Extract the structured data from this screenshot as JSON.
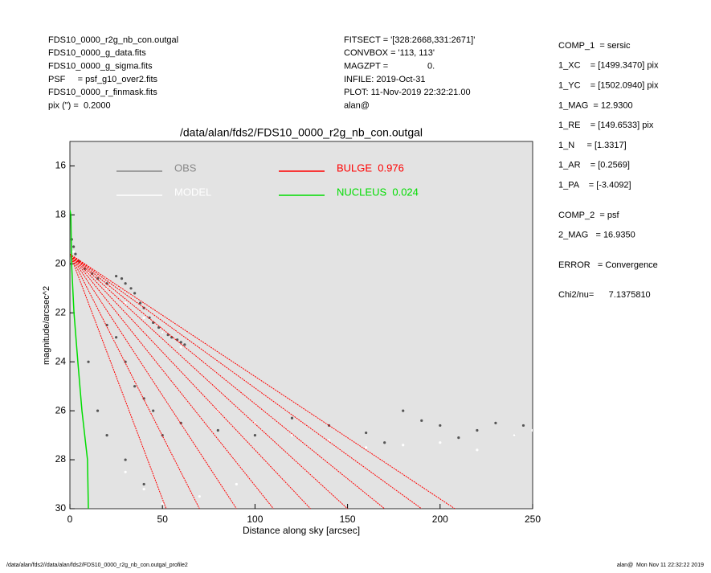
{
  "header": {
    "left": [
      "FDS10_0000_r2g_nb_con.outgal",
      "FDS10_0000_g_data.fits",
      "FDS10_0000_g_sigma.fits",
      "PSF     = psf_g10_over2.fits",
      "FDS10_0000_r_finmask.fits",
      "pix (\") =  0.2000"
    ],
    "middle": [
      "FITSECT = '[328:2668,331:2671]'",
      "CONVBOX = '113, 113'",
      "MAGZPT =                0.",
      "INFILE: 2019-Oct-31",
      "PLOT: 11-Nov-2019 22:32:21.00",
      "alan@"
    ]
  },
  "right_panel": [
    [
      "COMP_1  = sersic",
      "1_XC    = [1499.3470] pix",
      "1_YC    = [1502.0940] pix",
      "1_MAG  = 12.9300",
      "1_RE    = [149.6533] pix",
      "1_N     = [1.3317]",
      "1_AR    = [0.2569]",
      "1_PA    = [-3.4092]"
    ],
    [
      "COMP_2  = psf",
      "2_MAG   = 16.9350"
    ],
    [
      "ERROR   = Convergence"
    ],
    [
      "Chi2/nu=      7.1375810"
    ]
  ],
  "footer": {
    "left": "/data/alan/fds2//data/alan/fds2/FDS10_0000_r2g_nb_con.outgal_profile2",
    "right": "alan@  Mon Nov 11 22:32:22 2019"
  },
  "chart_data": {
    "type": "line",
    "title": "/data/alan/fds2/FDS10_0000_r2g_nb_con.outgal",
    "xlabel": "Distance along sky [arcsec]",
    "ylabel": "magnitude/arcsec^2",
    "xlim": [
      0,
      250
    ],
    "ylim": [
      15,
      30
    ],
    "y_inverted": true,
    "xticks": [
      0,
      50,
      100,
      150,
      200,
      250
    ],
    "yticks": [
      16,
      18,
      20,
      22,
      24,
      26,
      28,
      30
    ],
    "background": "#e3e3e3",
    "series": [
      {
        "name": "OBS",
        "color": "#555555",
        "legend_color": "#888888",
        "style": "points",
        "x": [
          1,
          2,
          3,
          5,
          8,
          12,
          15,
          20,
          25,
          28,
          30,
          33,
          35,
          38,
          40,
          43,
          45,
          48,
          50,
          53,
          55,
          58,
          60,
          62,
          20,
          25,
          30,
          35,
          40,
          45,
          50,
          60,
          80,
          100,
          120,
          140,
          160,
          170,
          180,
          190,
          200,
          210,
          220,
          230,
          240,
          245,
          10,
          15,
          20,
          30,
          40
        ],
        "values": [
          19,
          19.3,
          19.6,
          19.9,
          20.2,
          20.4,
          20.6,
          20.8,
          20.5,
          20.6,
          20.8,
          21.0,
          21.2,
          21.6,
          21.8,
          22.2,
          22.4,
          22.6,
          22.8,
          22.9,
          23.0,
          23.1,
          23.2,
          23.3,
          22.5,
          23,
          24,
          25,
          25.5,
          26,
          27,
          26.5,
          26.8,
          27,
          26.3,
          26.6,
          26.9,
          27.3,
          26.0,
          26.4,
          26.6,
          27.1,
          26.8,
          26.5,
          27.0,
          26.6,
          24,
          26,
          27,
          28,
          29
        ]
      },
      {
        "name": "MODEL",
        "color": "#ffffff",
        "legend_color": "#ffffff",
        "style": "points",
        "x": [
          2,
          5,
          10,
          20,
          30,
          40,
          50,
          60,
          80,
          100,
          120,
          140,
          160,
          180,
          200,
          220,
          240,
          250,
          50,
          70,
          90,
          30,
          40
        ],
        "values": [
          19.5,
          20,
          20.4,
          21,
          21.6,
          22.2,
          22.8,
          23.4,
          26,
          26.5,
          27,
          27.2,
          27.5,
          27.4,
          27.3,
          27.6,
          27,
          26.8,
          29.8,
          29.5,
          29,
          28.5,
          29.2
        ]
      },
      {
        "name": "BULGE  0.976",
        "color": "#ff0000",
        "legend_color": "#ff0000",
        "style": "line",
        "x": [
          0,
          208,
          null,
          0,
          190,
          null,
          0,
          170,
          null,
          0,
          150,
          null,
          0,
          130,
          null,
          0,
          110,
          null,
          0,
          90,
          null,
          0,
          70,
          null,
          0,
          52
        ],
        "values": [
          19.6,
          30,
          null,
          19.6,
          30,
          null,
          19.6,
          30,
          null,
          19.6,
          30,
          null,
          19.6,
          30,
          null,
          19.6,
          30,
          null,
          19.6,
          30,
          null,
          19.6,
          30,
          null,
          19.6,
          30
        ]
      },
      {
        "name": "NUCLEUS  0.024",
        "color": "#00dd00",
        "legend_color": "#00dd00",
        "style": "line",
        "x": [
          0,
          0.5,
          0.9,
          2.2,
          4.3,
          6.5,
          9.5,
          10
        ],
        "values": [
          17.8,
          18,
          20,
          22,
          24,
          26,
          28,
          30
        ]
      }
    ]
  }
}
